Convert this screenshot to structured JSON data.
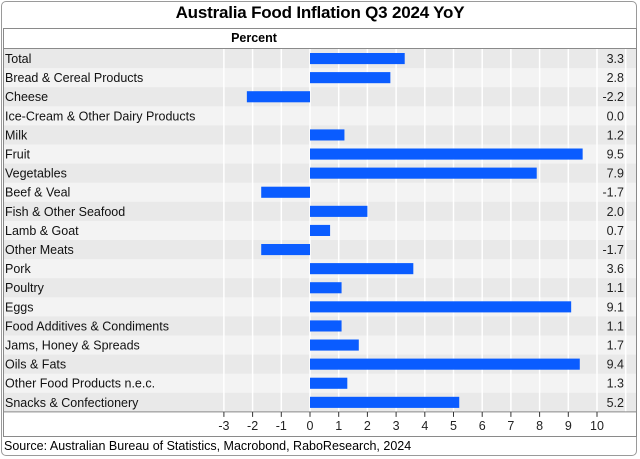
{
  "chart_data": {
    "type": "bar",
    "orientation": "horizontal",
    "title": "Australia Food Inflation Q3 2024 YoY",
    "ylabel": "Percent",
    "xlabel": "",
    "xlim": [
      -3,
      11
    ],
    "xticks": [
      -3,
      -2,
      -1,
      0,
      1,
      2,
      3,
      4,
      5,
      6,
      7,
      8,
      9,
      10
    ],
    "grid": true,
    "categories": [
      "Total",
      "Bread & Cereal Products",
      "Cheese",
      "Ice-Cream & Other Dairy Products",
      "Milk",
      "Fruit",
      "Vegetables",
      "Beef & Veal",
      "Fish & Other Seafood",
      "Lamb & Goat",
      "Other Meats",
      "Pork",
      "Poultry",
      "Eggs",
      "Food Additives & Condiments",
      "Jams, Honey & Spreads",
      "Oils & Fats",
      "Other Food Products n.e.c.",
      "Snacks & Confectionery"
    ],
    "values": [
      3.3,
      2.8,
      -2.2,
      0.0,
      1.2,
      9.5,
      7.9,
      -1.7,
      2.0,
      0.7,
      -1.7,
      3.6,
      1.1,
      9.1,
      1.1,
      1.7,
      9.4,
      1.3,
      5.2
    ],
    "value_labels": [
      "3.3",
      "2.8",
      "-2.2",
      "0.0",
      "1.2",
      "9.5",
      "7.9",
      "-1.7",
      "2.0",
      "0.7",
      "-1.7",
      "3.6",
      "1.1",
      "9.1",
      "1.1",
      "1.7",
      "9.4",
      "1.3",
      "5.2"
    ],
    "source": "Source: Australian Bureau of Statistics, Macrobond, RaboResearch, 2024"
  },
  "colors": {
    "bar": "#0a5cff",
    "row_light": "#f3f3f3",
    "row_dark": "#e9e9e9",
    "grid": "#ffffff"
  }
}
